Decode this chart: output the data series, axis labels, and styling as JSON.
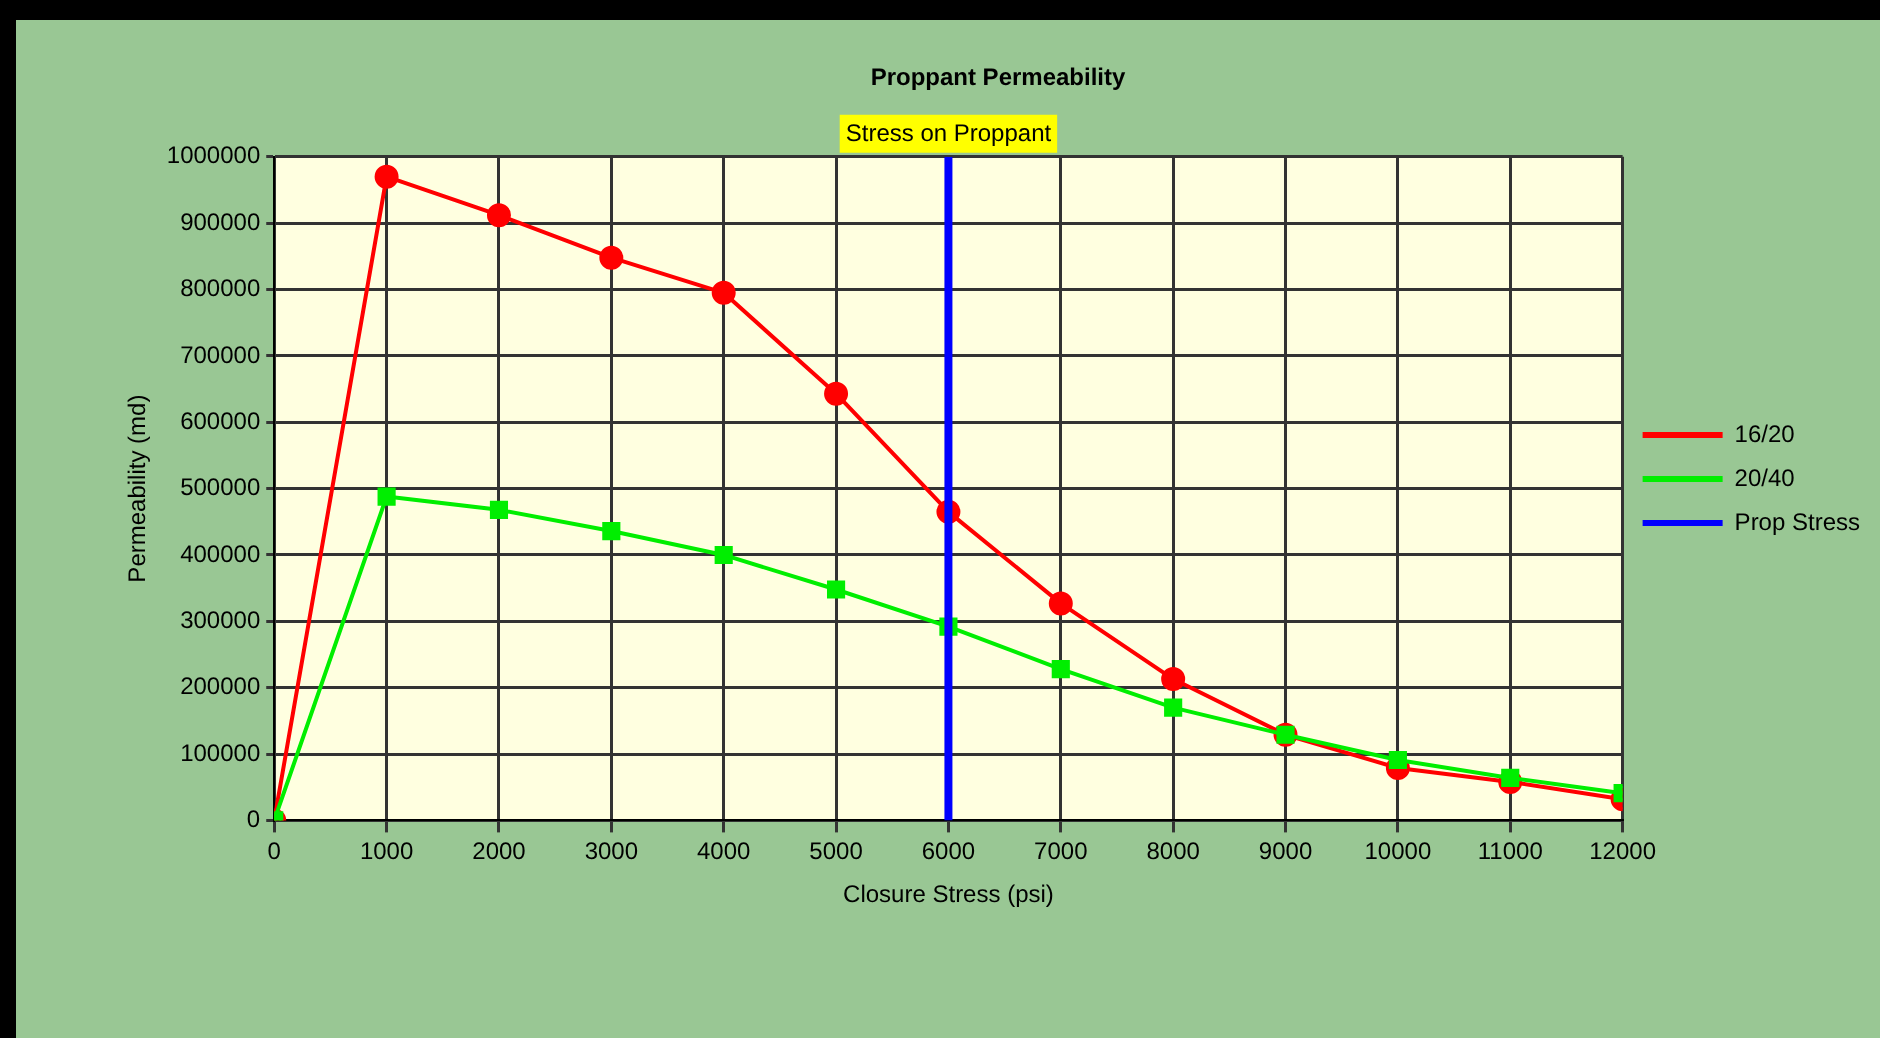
{
  "chart_data": {
    "type": "line",
    "title": "Proppant Permeability",
    "xlabel": "Closure Stress (psi)",
    "ylabel": "Permeability (md)",
    "x": [
      0,
      1000,
      2000,
      3000,
      4000,
      5000,
      6000,
      7000,
      8000,
      9000,
      10000,
      11000,
      12000
    ],
    "series": [
      {
        "name": "16/20",
        "color": "#ff0000",
        "marker": "circle",
        "values": [
          0,
          970000,
          912000,
          848000,
          795000,
          643000,
          465000,
          327000,
          213000,
          129000,
          79000,
          58000,
          32000
        ]
      },
      {
        "name": "20/40",
        "color": "#00ee00",
        "marker": "square",
        "values": [
          0,
          488000,
          468000,
          436000,
          400000,
          348000,
          292000,
          228000,
          170000,
          129000,
          91000,
          64000,
          41000
        ]
      },
      {
        "name": "Prop Stress",
        "color": "#0000ff",
        "marker": "none",
        "x": [
          6000,
          6000
        ],
        "values": [
          0,
          1000000
        ]
      }
    ],
    "annotations": [
      {
        "text": "Stress on Proppant",
        "x": 6000,
        "y": 1000000
      }
    ],
    "xlim": [
      0,
      12000
    ],
    "xticks": [
      0,
      1000,
      2000,
      3000,
      4000,
      5000,
      6000,
      7000,
      8000,
      9000,
      10000,
      11000,
      12000
    ],
    "ylim": [
      0,
      1000000
    ],
    "yticks": [
      0,
      100000,
      200000,
      300000,
      400000,
      500000,
      600000,
      700000,
      800000,
      900000,
      1000000
    ],
    "grid": true,
    "legend": "right",
    "line_style": "solid"
  }
}
